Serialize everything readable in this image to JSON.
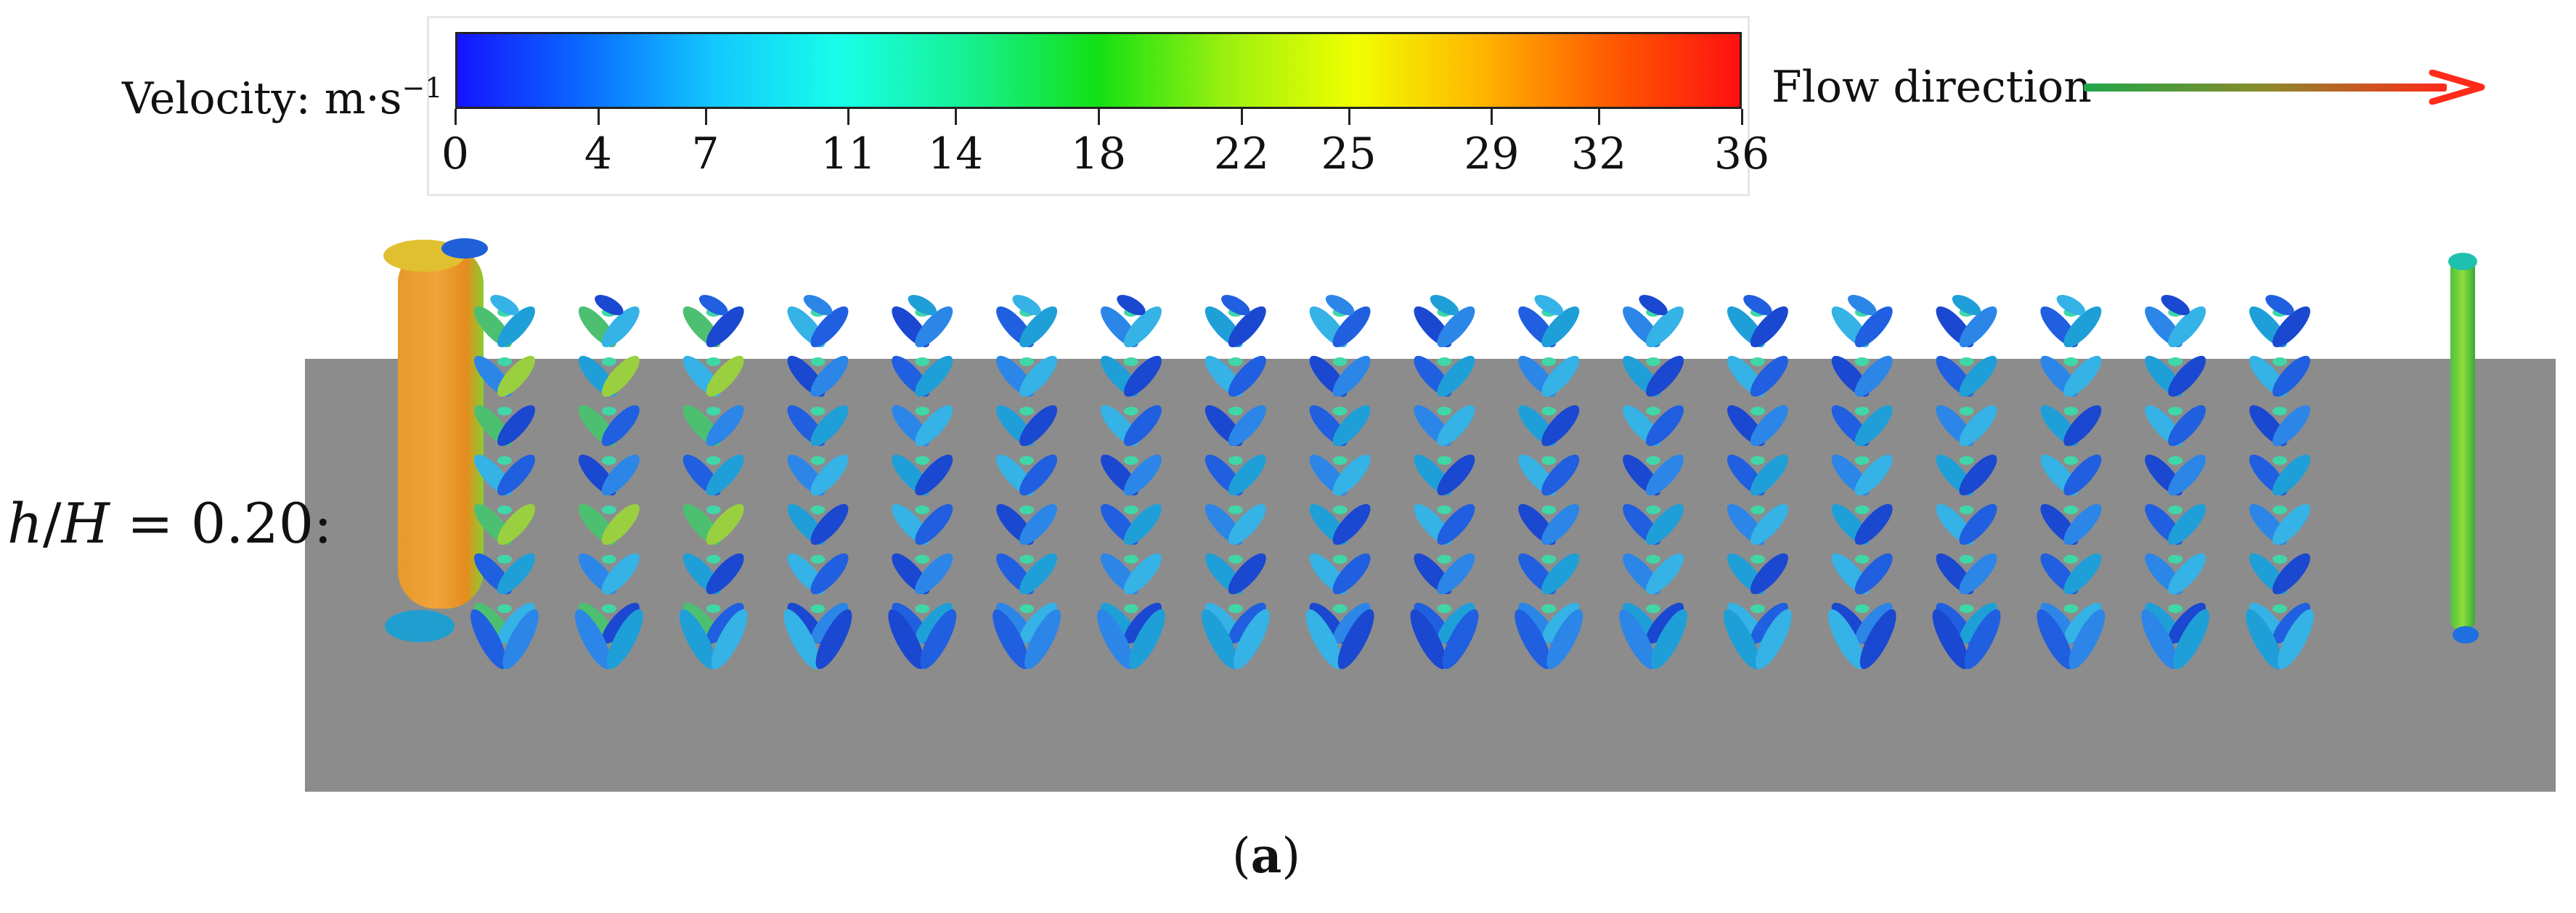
{
  "legend": {
    "velocity_label": "Velocity: m·s",
    "velocity_exponent": "−1",
    "ticks": [
      "0",
      "4",
      "7",
      "11",
      "14",
      "18",
      "22",
      "25",
      "29",
      "32",
      "36"
    ],
    "range": [
      0,
      36
    ],
    "colors": [
      "#1414ff",
      "#0a6cff",
      "#12c8ff",
      "#18ffe8",
      "#16f090",
      "#14e014",
      "#9cf010",
      "#f0ff00",
      "#ffb400",
      "#ff5a00",
      "#ff1010"
    ]
  },
  "flow": {
    "label": "Flow direction",
    "arrow_colors": [
      "#1fa64a",
      "#8a8a2a",
      "#ff2a1a"
    ]
  },
  "panel": {
    "label_h": "h",
    "label_H": "H",
    "label_value": " = 0.20:",
    "ground_color": "#8c8c8c",
    "structure_columns": 18
  },
  "caption": {
    "open": "(",
    "letter": "a",
    "close": ")"
  }
}
